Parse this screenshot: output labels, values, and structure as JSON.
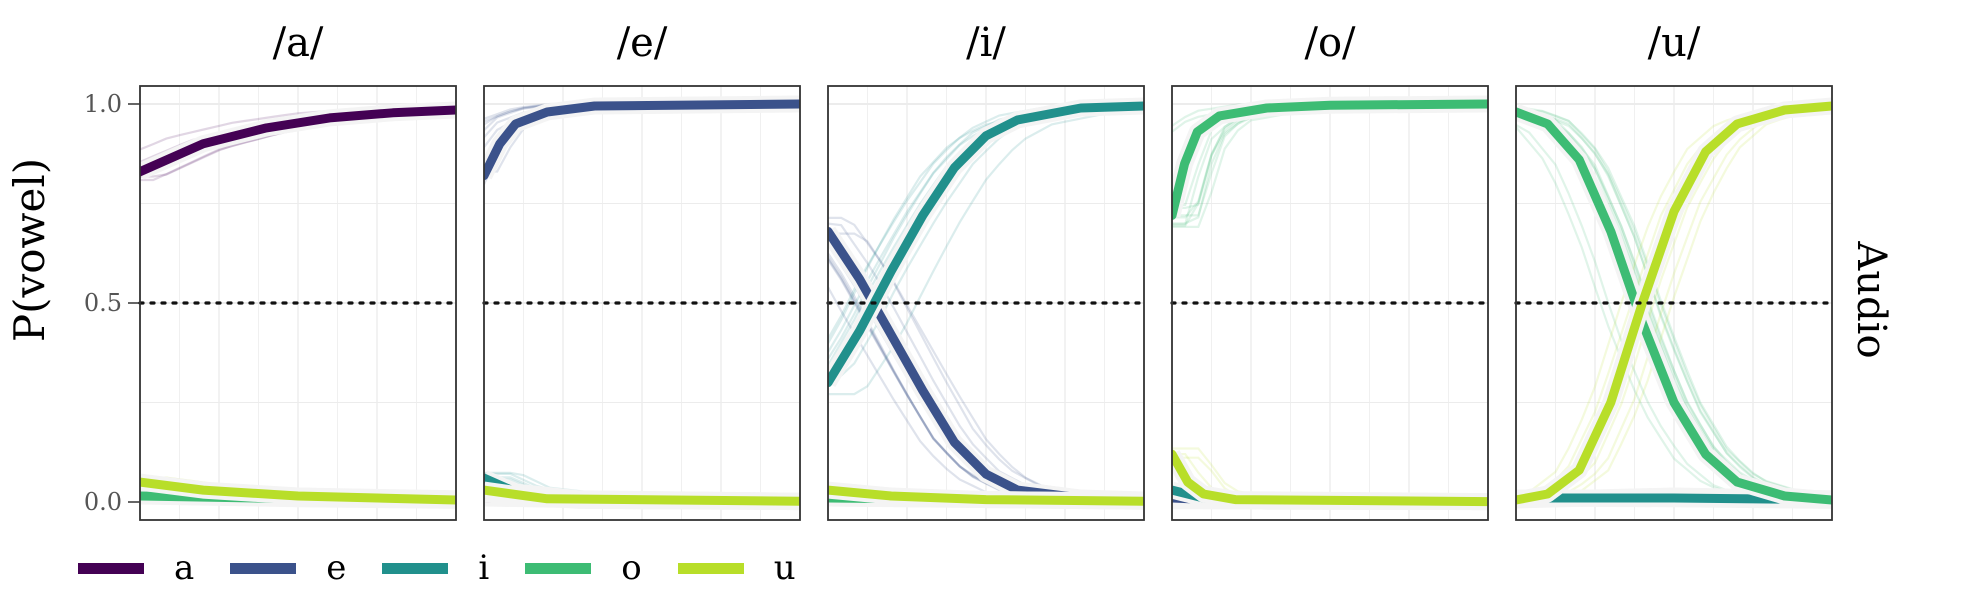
{
  "chart_data": {
    "type": "line",
    "ylabel": "P(vowel)",
    "xlabel": "",
    "strip_right": "Audio",
    "ylim": [
      0.0,
      1.0
    ],
    "yticks": [
      "0.0",
      "0.5",
      "1.0"
    ],
    "reference_line": {
      "y": 0.5,
      "style": "dotted"
    },
    "grid": true,
    "legend_position": "bottom",
    "series_names": [
      "a",
      "e",
      "i",
      "o",
      "u"
    ],
    "colors": {
      "a": "#440154",
      "e": "#3b528b",
      "i": "#21908c",
      "o": "#3dbc74",
      "u": "#b8de29"
    },
    "x_domain": [
      0,
      1
    ],
    "panels": [
      {
        "title": "/a/",
        "series": [
          {
            "name": "a",
            "points": [
              [
                0,
                0.83
              ],
              [
                0.2,
                0.9
              ],
              [
                0.4,
                0.94
              ],
              [
                0.6,
                0.965
              ],
              [
                0.8,
                0.978
              ],
              [
                1,
                0.985
              ]
            ]
          },
          {
            "name": "e",
            "points": [
              [
                0,
                0.03
              ],
              [
                0.5,
                0.015
              ],
              [
                1,
                0.008
              ]
            ]
          },
          {
            "name": "i",
            "points": [
              [
                0,
                0.02
              ],
              [
                0.5,
                0.012
              ],
              [
                1,
                0.006
              ]
            ]
          },
          {
            "name": "o",
            "points": [
              [
                0,
                0.015
              ],
              [
                0.5,
                0.008
              ],
              [
                1,
                0.004
              ]
            ]
          },
          {
            "name": "u",
            "points": [
              [
                0,
                0.05
              ],
              [
                0.2,
                0.03
              ],
              [
                0.5,
                0.015
              ],
              [
                1,
                0.005
              ]
            ]
          }
        ]
      },
      {
        "title": "/e/",
        "series": [
          {
            "name": "a",
            "points": [
              [
                0,
                0.01
              ],
              [
                0.5,
                0.003
              ],
              [
                1,
                0.001
              ]
            ]
          },
          {
            "name": "e",
            "points": [
              [
                0,
                0.82
              ],
              [
                0.05,
                0.9
              ],
              [
                0.1,
                0.95
              ],
              [
                0.2,
                0.98
              ],
              [
                0.35,
                0.995
              ],
              [
                1,
                1.0
              ]
            ]
          },
          {
            "name": "i",
            "points": [
              [
                0,
                0.06
              ],
              [
                0.1,
                0.025
              ],
              [
                0.3,
                0.008
              ],
              [
                1,
                0.002
              ]
            ]
          },
          {
            "name": "o",
            "points": [
              [
                0,
                0.02
              ],
              [
                0.3,
                0.004
              ],
              [
                1,
                0.001
              ]
            ]
          },
          {
            "name": "u",
            "points": [
              [
                0,
                0.03
              ],
              [
                0.2,
                0.008
              ],
              [
                1,
                0.002
              ]
            ]
          }
        ]
      },
      {
        "title": "/i/",
        "series": [
          {
            "name": "a",
            "points": [
              [
                0,
                0.01
              ],
              [
                1,
                0.003
              ]
            ]
          },
          {
            "name": "e",
            "points": [
              [
                0,
                0.68
              ],
              [
                0.1,
                0.56
              ],
              [
                0.2,
                0.42
              ],
              [
                0.3,
                0.28
              ],
              [
                0.4,
                0.15
              ],
              [
                0.5,
                0.07
              ],
              [
                0.6,
                0.03
              ],
              [
                0.8,
                0.01
              ],
              [
                1,
                0.005
              ]
            ]
          },
          {
            "name": "i",
            "points": [
              [
                0,
                0.3
              ],
              [
                0.1,
                0.43
              ],
              [
                0.2,
                0.58
              ],
              [
                0.3,
                0.72
              ],
              [
                0.4,
                0.84
              ],
              [
                0.5,
                0.92
              ],
              [
                0.6,
                0.96
              ],
              [
                0.8,
                0.99
              ],
              [
                1,
                0.995
              ]
            ]
          },
          {
            "name": "o",
            "points": [
              [
                0,
                0.01
              ],
              [
                1,
                0.002
              ]
            ]
          },
          {
            "name": "u",
            "points": [
              [
                0,
                0.03
              ],
              [
                0.2,
                0.015
              ],
              [
                0.5,
                0.006
              ],
              [
                1,
                0.002
              ]
            ]
          }
        ]
      },
      {
        "title": "/o/",
        "series": [
          {
            "name": "a",
            "points": [
              [
                0,
                0.003
              ],
              [
                1,
                0.001
              ]
            ]
          },
          {
            "name": "e",
            "points": [
              [
                0,
                0.01
              ],
              [
                0.2,
                0.003
              ],
              [
                1,
                0.001
              ]
            ]
          },
          {
            "name": "i",
            "points": [
              [
                0,
                0.03
              ],
              [
                0.1,
                0.01
              ],
              [
                0.3,
                0.002
              ],
              [
                1,
                0.001
              ]
            ]
          },
          {
            "name": "o",
            "points": [
              [
                0,
                0.72
              ],
              [
                0.04,
                0.85
              ],
              [
                0.08,
                0.93
              ],
              [
                0.15,
                0.97
              ],
              [
                0.3,
                0.99
              ],
              [
                0.5,
                0.997
              ],
              [
                1,
                1.0
              ]
            ]
          },
          {
            "name": "u",
            "points": [
              [
                0,
                0.12
              ],
              [
                0.05,
                0.05
              ],
              [
                0.1,
                0.02
              ],
              [
                0.2,
                0.006
              ],
              [
                1,
                0.001
              ]
            ]
          }
        ]
      },
      {
        "title": "/u/",
        "series": [
          {
            "name": "a",
            "points": [
              [
                0,
                0.005
              ],
              [
                0.5,
                0.015
              ],
              [
                1,
                0.008
              ]
            ]
          },
          {
            "name": "e",
            "points": [
              [
                0,
                0.01
              ],
              [
                0.5,
                0.008
              ],
              [
                1,
                0.004
              ]
            ]
          },
          {
            "name": "i",
            "points": [
              [
                0,
                0.01
              ],
              [
                0.5,
                0.01
              ],
              [
                1,
                0.006
              ]
            ]
          },
          {
            "name": "o",
            "points": [
              [
                0,
                0.98
              ],
              [
                0.1,
                0.95
              ],
              [
                0.2,
                0.86
              ],
              [
                0.3,
                0.68
              ],
              [
                0.4,
                0.45
              ],
              [
                0.5,
                0.25
              ],
              [
                0.6,
                0.12
              ],
              [
                0.7,
                0.05
              ],
              [
                0.85,
                0.015
              ],
              [
                1,
                0.005
              ]
            ]
          },
          {
            "name": "u",
            "points": [
              [
                0,
                0.005
              ],
              [
                0.1,
                0.02
              ],
              [
                0.2,
                0.08
              ],
              [
                0.3,
                0.25
              ],
              [
                0.4,
                0.5
              ],
              [
                0.5,
                0.73
              ],
              [
                0.6,
                0.88
              ],
              [
                0.7,
                0.95
              ],
              [
                0.85,
                0.985
              ],
              [
                1,
                0.995
              ]
            ]
          }
        ]
      }
    ]
  }
}
